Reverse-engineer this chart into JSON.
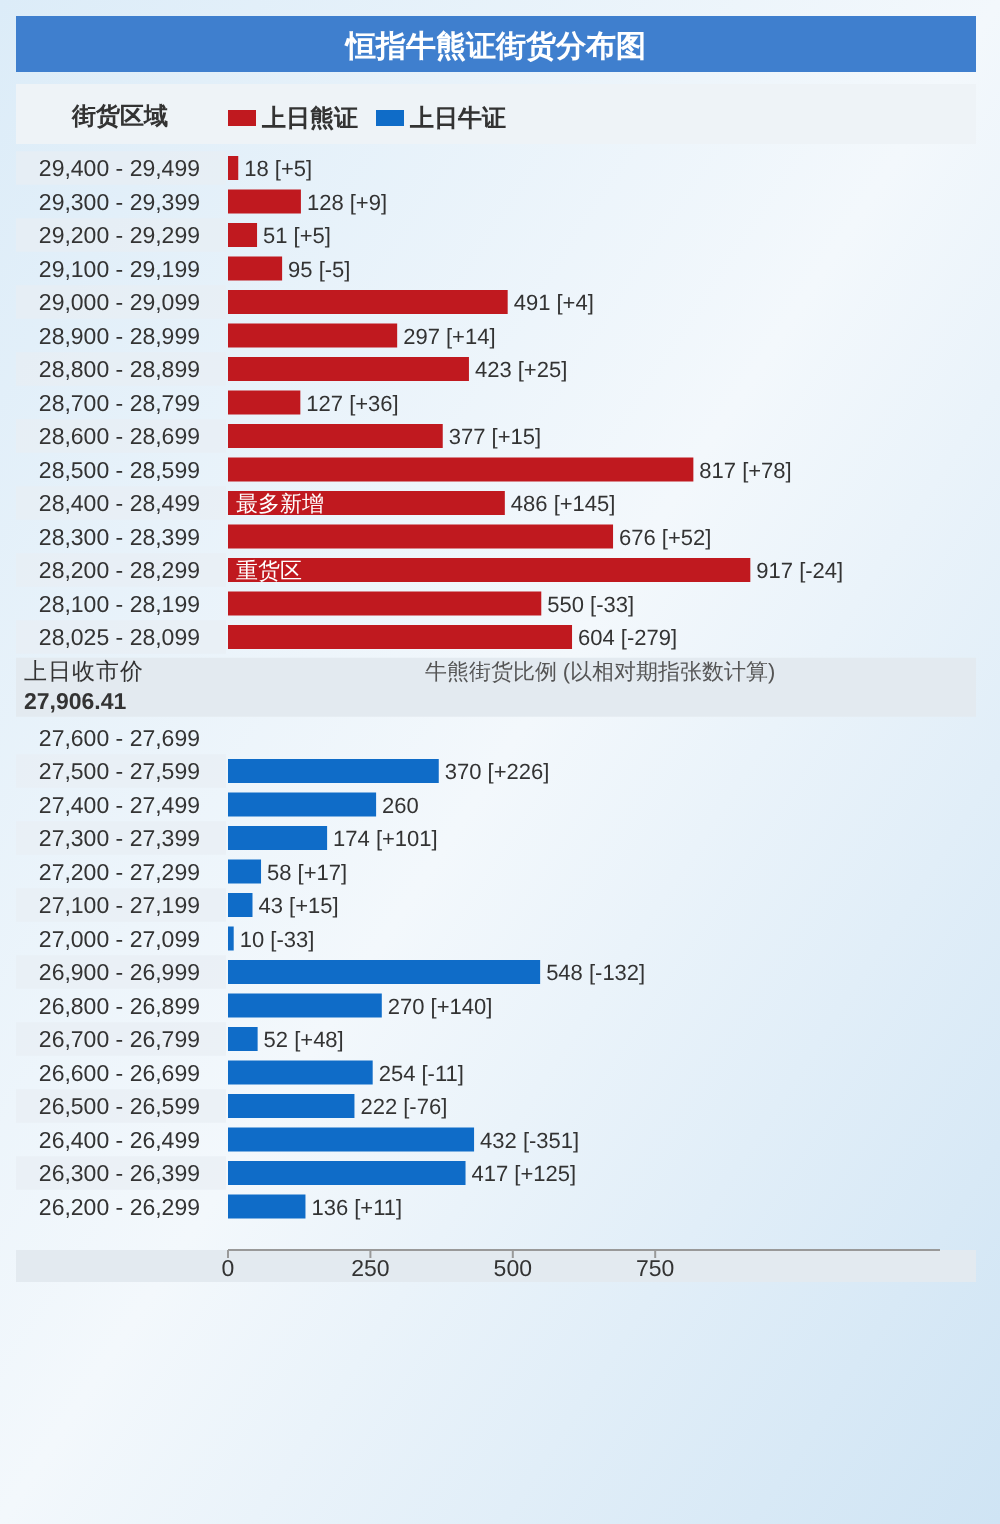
{
  "chart_data": {
    "type": "bar",
    "orientation": "horizontal",
    "title": "恒指牛熊证街货分布图",
    "ylabel": "街货区域",
    "categories": [
      "29,400 - 29,499",
      "29,300 - 29,399",
      "29,200 - 29,299",
      "29,100 - 29,199",
      "29,000 - 29,099",
      "28,900 - 28,999",
      "28,800 - 28,899",
      "28,700 - 28,799",
      "28,600 - 28,699",
      "28,500 - 28,599",
      "28,400 - 28,499",
      "28,300 - 28,399",
      "28,200 - 28,299",
      "28,100 - 28,199",
      "28,025 - 28,099",
      "27,600 - 27,699",
      "27,500 - 27,599",
      "27,400 - 27,499",
      "27,300 - 27,399",
      "27,200 - 27,299",
      "27,100 - 27,199",
      "27,000 - 27,099",
      "26,900 - 26,999",
      "26,800 - 26,899",
      "26,700 - 26,799",
      "26,600 - 26,699",
      "26,500 - 26,599",
      "26,400 - 26,499",
      "26,300 - 26,399",
      "26,200 - 26,299"
    ],
    "series": [
      {
        "name": "上日熊证",
        "color": "#c0191f",
        "values": [
          18,
          128,
          51,
          95,
          491,
          297,
          423,
          127,
          377,
          817,
          486,
          676,
          917,
          550,
          604,
          null,
          null,
          null,
          null,
          null,
          null,
          null,
          null,
          null,
          null,
          null,
          null,
          null,
          null,
          null
        ],
        "value_labels": [
          "18 [+5]",
          "128 [+9]",
          "51 [+5]",
          "95 [-5]",
          "491 [+4]",
          "297 [+14]",
          "423 [+25]",
          "127 [+36]",
          "377 [+15]",
          "817 [+78]",
          "486 [+145]",
          "676 [+52]",
          "917 [-24]",
          "550 [-33]",
          "604 [-279]",
          null,
          null,
          null,
          null,
          null,
          null,
          null,
          null,
          null,
          null,
          null,
          null,
          null,
          null,
          null
        ]
      },
      {
        "name": "上日牛证",
        "color": "#0f6cc8",
        "values": [
          null,
          null,
          null,
          null,
          null,
          null,
          null,
          null,
          null,
          null,
          null,
          null,
          null,
          null,
          null,
          null,
          370,
          260,
          174,
          58,
          43,
          10,
          548,
          270,
          52,
          254,
          222,
          432,
          417,
          136
        ],
        "value_labels": [
          null,
          null,
          null,
          null,
          null,
          null,
          null,
          null,
          null,
          null,
          null,
          null,
          null,
          null,
          null,
          null,
          "370 [+226]",
          "260",
          "174 [+101]",
          "58 [+17]",
          "43 [+15]",
          "10 [-33]",
          "548 [-132]",
          "270 [+140]",
          "52 [+48]",
          "254 [-11]",
          "222 [-76]",
          "432 [-351]",
          "417 [+125]",
          "136 [+11]"
        ]
      }
    ],
    "xlim": [
      0,
      1250
    ],
    "xticks": [
      0,
      250,
      500,
      750
    ],
    "legend": "top left",
    "annotations": [
      {
        "text": "最多新增",
        "x": 0,
        "y": "28,400 - 28,499"
      },
      {
        "text": "重货区",
        "x": 0,
        "y": "28,200 - 28,299"
      },
      "上日收市价",
      "27,906.41",
      "牛熊街货比例 (以相对期指张数计算)"
    ]
  }
}
